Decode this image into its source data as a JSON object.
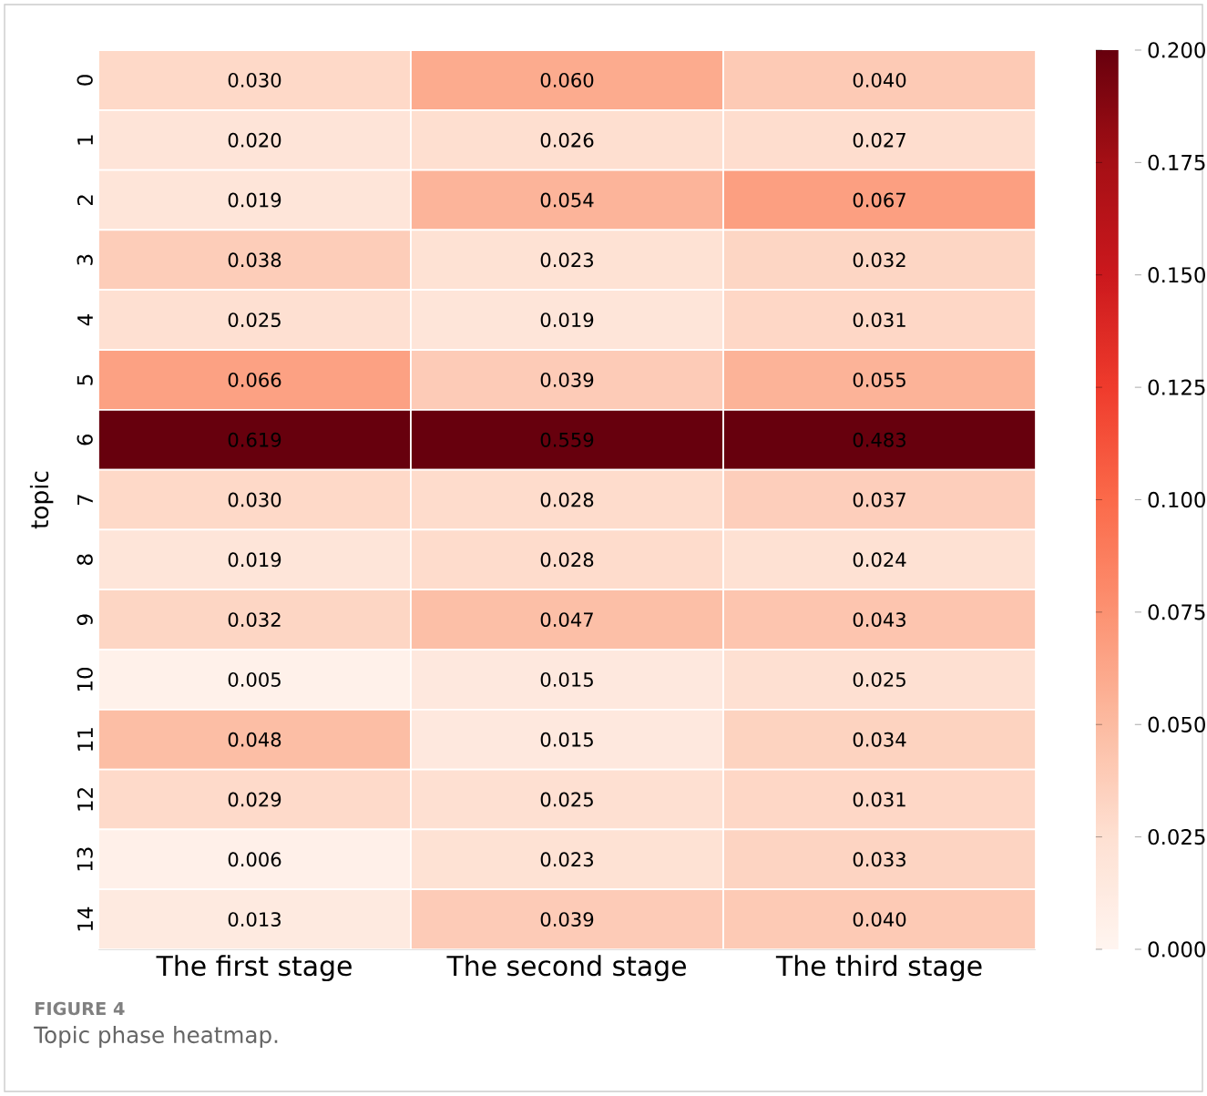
{
  "chart_data": {
    "type": "heatmap",
    "ylabel": "topic",
    "categories": [
      "The first stage",
      "The second stage",
      "The third stage"
    ],
    "y_categories": [
      "0",
      "1",
      "2",
      "3",
      "4",
      "5",
      "6",
      "7",
      "8",
      "9",
      "10",
      "11",
      "12",
      "13",
      "14"
    ],
    "cells": [
      [
        0.03,
        0.06,
        0.04
      ],
      [
        0.02,
        0.026,
        0.027
      ],
      [
        0.019,
        0.054,
        0.067
      ],
      [
        0.038,
        0.023,
        0.032
      ],
      [
        0.025,
        0.019,
        0.031
      ],
      [
        0.066,
        0.039,
        0.055
      ],
      [
        0.619,
        0.559,
        0.483
      ],
      [
        0.03,
        0.028,
        0.037
      ],
      [
        0.019,
        0.028,
        0.024
      ],
      [
        0.032,
        0.047,
        0.043
      ],
      [
        0.005,
        0.015,
        0.025
      ],
      [
        0.048,
        0.015,
        0.034
      ],
      [
        0.029,
        0.025,
        0.031
      ],
      [
        0.006,
        0.023,
        0.033
      ],
      [
        0.013,
        0.039,
        0.04
      ]
    ],
    "cell_labels": [
      [
        "0.030",
        "0.060",
        "0.040"
      ],
      [
        "0.020",
        "0.026",
        "0.027"
      ],
      [
        "0.019",
        "0.054",
        "0.067"
      ],
      [
        "0.038",
        "0.023",
        "0.032"
      ],
      [
        "0.025",
        "0.019",
        "0.031"
      ],
      [
        "0.066",
        "0.039",
        "0.055"
      ],
      [
        "0.619",
        "0.559",
        "0.483"
      ],
      [
        "0.030",
        "0.028",
        "0.037"
      ],
      [
        "0.019",
        "0.028",
        "0.024"
      ],
      [
        "0.032",
        "0.047",
        "0.043"
      ],
      [
        "0.005",
        "0.015",
        "0.025"
      ],
      [
        "0.048",
        "0.015",
        "0.034"
      ],
      [
        "0.029",
        "0.025",
        "0.031"
      ],
      [
        "0.006",
        "0.023",
        "0.033"
      ],
      [
        "0.013",
        "0.039",
        "0.040"
      ]
    ],
    "clim": [
      0,
      0.2
    ],
    "cticks": [
      {
        "value": 0,
        "label": "0.000"
      },
      {
        "value": 0.025,
        "label": "0.025"
      },
      {
        "value": 0.05,
        "label": "0.050"
      },
      {
        "value": 0.075,
        "label": "0.075"
      },
      {
        "value": 0.1,
        "label": "0.100"
      },
      {
        "value": 0.125,
        "label": "0.125"
      },
      {
        "value": 0.15,
        "label": "0.150"
      },
      {
        "value": 0.175,
        "label": "0.175"
      },
      {
        "value": 0.2,
        "label": "0.200"
      }
    ],
    "annotations": [
      "FIGURE 4",
      "Topic phase heatmap."
    ]
  }
}
